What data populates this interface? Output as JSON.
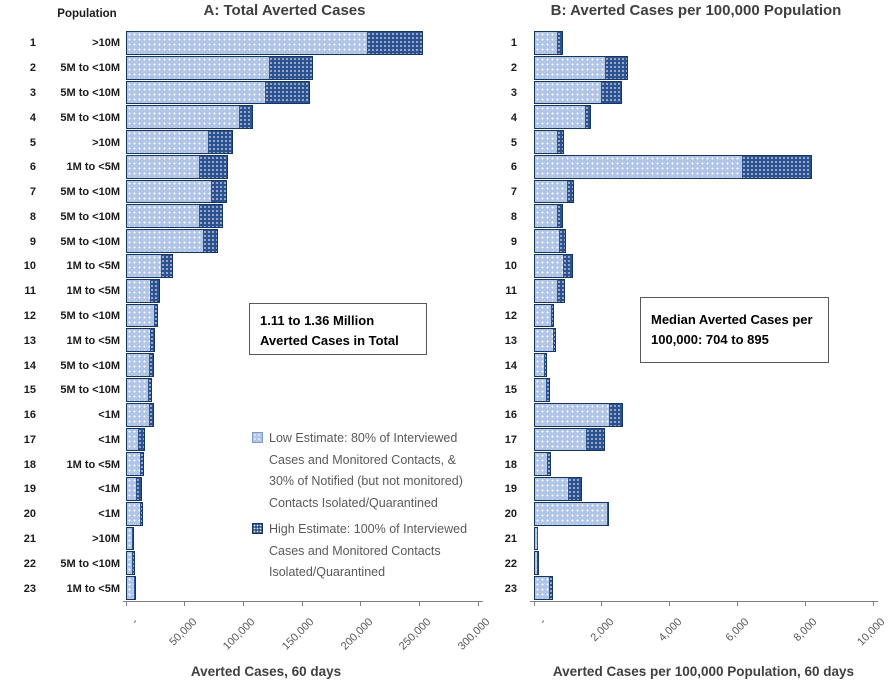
{
  "panel_a": {
    "title": "A: Total Averted Cases",
    "population_header": "Population",
    "xlabel": "Averted Cases, 60 days",
    "annotation_line1": "1.11 to 1.36 Million",
    "annotation_line2": "Averted Cases in Total"
  },
  "panel_b": {
    "title": "B: Averted Cases per 100,000 Population",
    "xlabel": "Averted Cases per 100,000 Population, 60 days",
    "annotation_line1": "Median Averted Cases per",
    "annotation_line2": "100,000: 704 to 895"
  },
  "legend": {
    "low_label": "Low Estimate: 80% of Interviewed Cases and Monitored Contacts, & 30% of Notified (but not monitored) Contacts Isolated/Quarantined",
    "high_label": "High Estimate: 100% of Interviewed Cases and Monitored Contacts Isolated/Quarantined"
  },
  "colors": {
    "low_fill": "#b1c5e6",
    "high_fill": "#2d5292",
    "bar_border": "#17365d",
    "axis_line": "#7f7f7f",
    "tick_text": "#595959",
    "label_text": "#1a1a1a",
    "legend_text": "#595959"
  },
  "chart_data": [
    {
      "type": "bar",
      "orientation": "horizontal",
      "stacked": true,
      "title": "A: Total Averted Cases",
      "xlabel": "Averted Cases, 60 days",
      "xlim": [
        0,
        300000
      ],
      "tick_values": [
        0,
        50000,
        100000,
        150000,
        200000,
        250000,
        300000
      ],
      "tick_labels": [
        "-",
        "50,000",
        "100,000",
        "150,000",
        "200,000",
        "250,000",
        "300,000"
      ],
      "categories": [
        "1",
        "2",
        "3",
        "4",
        "5",
        "6",
        "7",
        "8",
        "9",
        "10",
        "11",
        "12",
        "13",
        "14",
        "15",
        "16",
        "17",
        "18",
        "19",
        "20",
        "21",
        "22",
        "23"
      ],
      "population_labels": [
        ">10M",
        "5M to <10M",
        "5M to <10M",
        "5M to <10M",
        ">10M",
        "1M to <5M",
        "5M to <10M",
        "5M to <10M",
        "5M to <10M",
        "1M to <5M",
        "1M to <5M",
        "5M to <10M",
        "1M to <5M",
        "5M to <10M",
        "5M to <10M",
        "<1M",
        "<1M",
        "1M to <5M",
        "<1M",
        "<1M",
        ">10M",
        "5M to <10M",
        "1M to <5M"
      ],
      "series": [
        {
          "name": "Low Estimate",
          "values": [
            206000,
            122000,
            119000,
            97000,
            70000,
            63000,
            73000,
            63000,
            66000,
            30000,
            20500,
            24500,
            21000,
            20000,
            19000,
            20500,
            10500,
            12500,
            9000,
            13000,
            5500,
            6000,
            7000
          ]
        },
        {
          "name": "High Estimate (bar total)",
          "values": [
            253000,
            159000,
            157000,
            108000,
            91000,
            87000,
            86000,
            83000,
            78000,
            40000,
            29000,
            27000,
            25000,
            23500,
            22500,
            24000,
            16000,
            15500,
            13500,
            14500,
            7000,
            7500,
            8500
          ]
        }
      ],
      "annotation": "1.11 to 1.36 Million Averted Cases in Total",
      "grid": false,
      "legend_position": "inside lower right of plot"
    },
    {
      "type": "bar",
      "orientation": "horizontal",
      "stacked": true,
      "title": "B: Averted Cases per 100,000 Population",
      "xlabel": "Averted Cases per 100,000 Population, 60 days",
      "xlim": [
        0,
        10000
      ],
      "tick_values": [
        0,
        2000,
        4000,
        6000,
        8000,
        10000
      ],
      "tick_labels": [
        "-",
        "2,000",
        "4,000",
        "6,000",
        "8,000",
        "10,000"
      ],
      "categories": [
        "1",
        "2",
        "3",
        "4",
        "5",
        "6",
        "7",
        "8",
        "9",
        "10",
        "11",
        "12",
        "13",
        "14",
        "15",
        "16",
        "17",
        "18",
        "19",
        "20",
        "21",
        "22",
        "23"
      ],
      "series": [
        {
          "name": "Low Estimate",
          "values": [
            700,
            2100,
            2000,
            1520,
            700,
            6150,
            990,
            700,
            770,
            860,
            690,
            540,
            580,
            320,
            370,
            2220,
            1550,
            400,
            1010,
            2190,
            110,
            120,
            470
          ]
        },
        {
          "name": "High Estimate (bar total)",
          "values": [
            860,
            2780,
            2600,
            1680,
            890,
            8200,
            1180,
            860,
            930,
            1160,
            910,
            590,
            650,
            380,
            470,
            2630,
            2090,
            500,
            1420,
            2200,
            130,
            150,
            570
          ]
        }
      ],
      "annotation": "Median Averted Cases per 100,000: 704 to 895",
      "grid": false
    }
  ]
}
